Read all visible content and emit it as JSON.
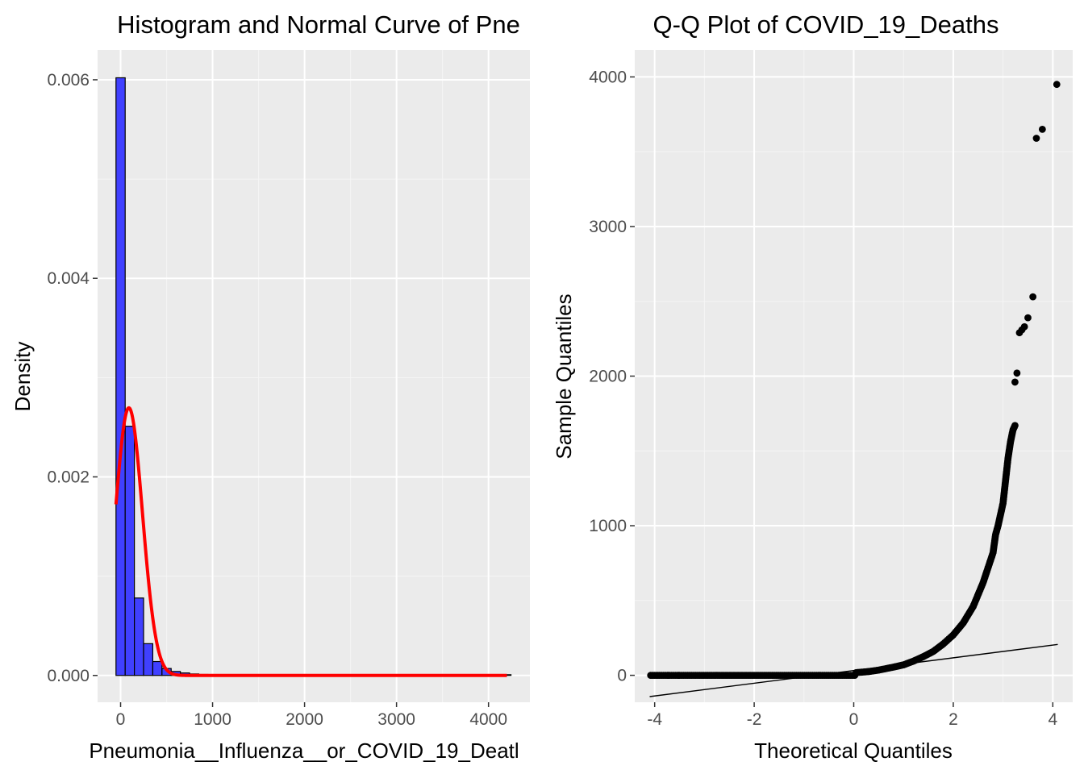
{
  "colors": {
    "panel_bg": "#ebebeb",
    "grid_major": "#ffffff",
    "grid_minor": "#f5f5f5",
    "bar_fill": "#4040ff",
    "bar_outline": "#000000",
    "curve": "#ff0000",
    "points": "#000000",
    "qq_line": "#000000",
    "tick_text": "#4d4d4d"
  },
  "chart_data": [
    {
      "type": "bar",
      "subtype": "histogram-with-density-curve",
      "title": "Histogram and Normal Curve of Pne",
      "xlabel": "Pneumonia__Influenza__or_COVID_19_Deatl",
      "ylabel": "Density",
      "xlim": [
        -250,
        4450
      ],
      "ylim": [
        -0.00027,
        0.0063
      ],
      "x_ticks": [
        0,
        1000,
        2000,
        3000,
        4000
      ],
      "x_tick_labels": [
        "0",
        "1000",
        "2000",
        "3000",
        "4000"
      ],
      "y_ticks": [
        0.0,
        0.002,
        0.004,
        0.006
      ],
      "y_tick_labels": [
        "0.000",
        "0.002",
        "0.004",
        "0.006"
      ],
      "grid": true,
      "bin_width": 100,
      "bins": [
        {
          "x0": -50,
          "x1": 50,
          "density": 0.00602
        },
        {
          "x0": 50,
          "x1": 150,
          "density": 0.00251
        },
        {
          "x0": 150,
          "x1": 250,
          "density": 0.00078
        },
        {
          "x0": 250,
          "x1": 350,
          "density": 0.00032
        },
        {
          "x0": 350,
          "x1": 450,
          "density": 0.00014
        },
        {
          "x0": 450,
          "x1": 550,
          "density": 7e-05
        },
        {
          "x0": 550,
          "x1": 650,
          "density": 4e-05
        },
        {
          "x0": 650,
          "x1": 750,
          "density": 2.5e-05
        },
        {
          "x0": 750,
          "x1": 850,
          "density": 1.5e-05
        },
        {
          "x0": 850,
          "x1": 950,
          "density": 1e-05
        },
        {
          "x0": 950,
          "x1": 1050,
          "density": 6e-06
        }
      ],
      "tail_range": [
        1050,
        4250
      ],
      "curve": {
        "name": "Normal density",
        "mean": 90,
        "sd": 148,
        "x_range": [
          -50,
          4200
        ]
      }
    },
    {
      "type": "scatter",
      "subtype": "qq-plot",
      "title": "Q-Q Plot of COVID_19_Deaths",
      "xlabel": "Theoretical Quantiles",
      "ylabel": "Sample Quantiles",
      "xlim": [
        -4.4,
        4.4
      ],
      "ylim": [
        -180,
        4180
      ],
      "x_ticks": [
        -4,
        -2,
        0,
        2,
        4
      ],
      "x_tick_labels": [
        "-4",
        "-2",
        "0",
        "2",
        "4"
      ],
      "y_ticks": [
        0,
        1000,
        2000,
        3000,
        4000
      ],
      "y_tick_labels": [
        "0",
        "1000",
        "2000",
        "3000",
        "4000"
      ],
      "grid": true,
      "reference_line": {
        "slope": 42.5,
        "intercept": 32,
        "x_range": [
          -4.1,
          4.1
        ]
      },
      "curve_samples": [
        [
          -4.08,
          0
        ],
        [
          -3.9,
          0
        ],
        [
          -3.7,
          0
        ],
        [
          0.02,
          0
        ],
        [
          0.05,
          18
        ],
        [
          0.3,
          25
        ],
        [
          0.5,
          35
        ],
        [
          0.8,
          55
        ],
        [
          1.0,
          70
        ],
        [
          1.2,
          95
        ],
        [
          1.4,
          125
        ],
        [
          1.6,
          160
        ],
        [
          1.8,
          210
        ],
        [
          2.0,
          270
        ],
        [
          2.2,
          350
        ],
        [
          2.4,
          460
        ],
        [
          2.6,
          620
        ],
        [
          2.7,
          720
        ],
        [
          2.8,
          820
        ],
        [
          2.85,
          940
        ],
        [
          2.9,
          1000
        ],
        [
          3.0,
          1150
        ],
        [
          3.05,
          1300
        ],
        [
          3.1,
          1450
        ],
        [
          3.15,
          1560
        ],
        [
          3.2,
          1640
        ],
        [
          3.24,
          1670
        ]
      ],
      "outliers": [
        [
          -3.73,
          0
        ],
        [
          -3.52,
          0
        ],
        [
          3.24,
          1960
        ],
        [
          3.28,
          2020
        ],
        [
          3.33,
          2290
        ],
        [
          3.38,
          2310
        ],
        [
          3.43,
          2330
        ],
        [
          3.5,
          2390
        ],
        [
          3.6,
          2530
        ],
        [
          3.67,
          3590
        ],
        [
          3.79,
          3650
        ],
        [
          4.08,
          3950
        ]
      ]
    }
  ]
}
